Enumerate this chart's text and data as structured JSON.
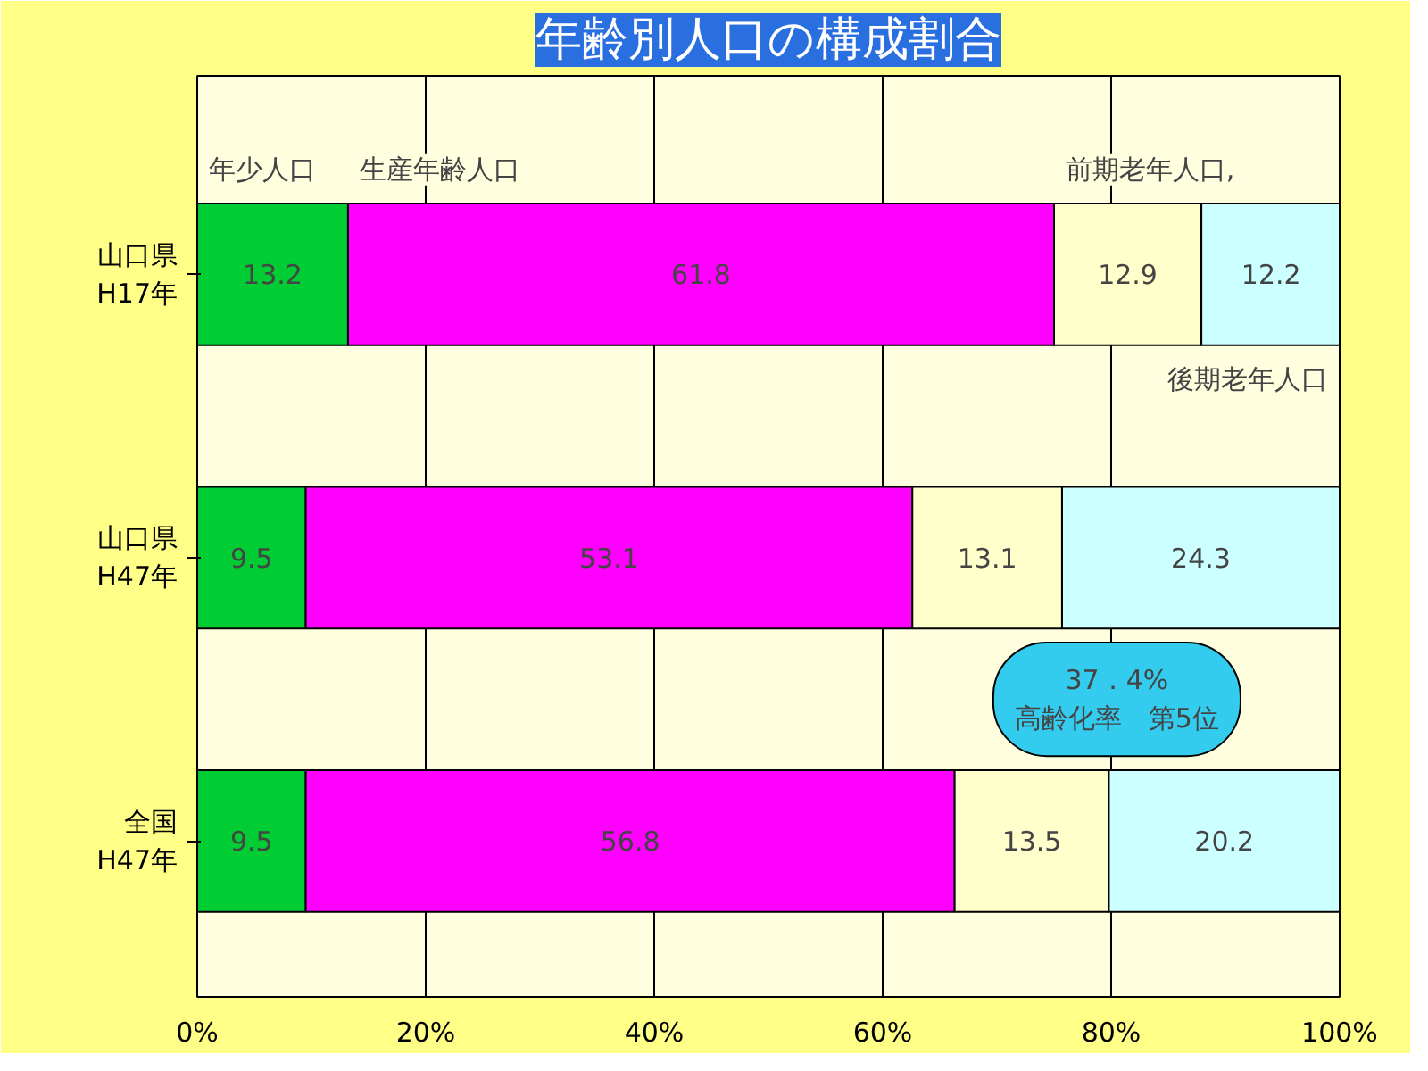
{
  "chart_data": {
    "type": "bar",
    "orientation": "horizontal",
    "stacked": true,
    "title": "年齢別人口の構成割合",
    "categories": [
      "山口県\nH17年",
      "山口県\nH47年",
      "全国\nH47年"
    ],
    "series": [
      {
        "name": "年少人口",
        "color": "#00cc33",
        "values": [
          13.2,
          9.5,
          9.5
        ]
      },
      {
        "name": "生産年齢人口",
        "color": "#ff00ff",
        "values": [
          61.8,
          53.1,
          56.8
        ]
      },
      {
        "name": "前期老年人口,",
        "color": "#ffffcc",
        "values": [
          12.9,
          13.1,
          13.5
        ]
      },
      {
        "name": "後期老年人口",
        "color": "#ccffff",
        "values": [
          12.2,
          24.3,
          20.2
        ]
      }
    ],
    "xlim": [
      0,
      100
    ],
    "xticks": [
      {
        "value": 0,
        "label": "0%"
      },
      {
        "value": 20,
        "label": "20%"
      },
      {
        "value": 40,
        "label": "40%"
      },
      {
        "value": 60,
        "label": "60%"
      },
      {
        "value": 80,
        "label": "80%"
      },
      {
        "value": 100,
        "label": "100%"
      }
    ],
    "grid": "x",
    "legend": false,
    "data_labels": true,
    "annotations": [
      "37．4%\n高齢化率　第5位"
    ]
  }
}
